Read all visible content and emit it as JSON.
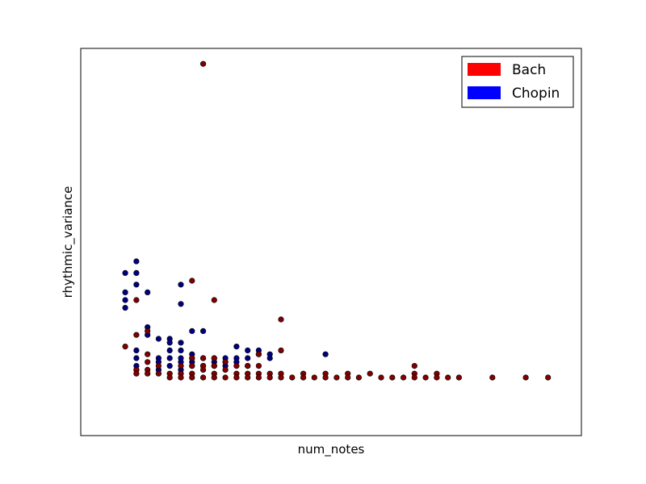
{
  "chart_data": {
    "type": "scatter",
    "xlabel": "num_notes",
    "ylabel": "rhythmic_variance",
    "grid": false,
    "legend_position": "top-right",
    "xlim": [
      0,
      45
    ],
    "ylim": [
      0,
      10
    ],
    "series": [
      {
        "name": "Chopin",
        "color": "#000080",
        "legend_color": "#0000ff",
        "points": [
          [
            4,
            3.7
          ],
          [
            4,
            3.3
          ],
          [
            4,
            4.2
          ],
          [
            4,
            3.5
          ],
          [
            5,
            4.5
          ],
          [
            5,
            4.2
          ],
          [
            5,
            3.9
          ],
          [
            5,
            2.2
          ],
          [
            5,
            2.0
          ],
          [
            5,
            1.8
          ],
          [
            5,
            1.7
          ],
          [
            6,
            3.7
          ],
          [
            6,
            2.8
          ],
          [
            6,
            2.6
          ],
          [
            7,
            2.5
          ],
          [
            7,
            2.0
          ],
          [
            7,
            1.9
          ],
          [
            7,
            1.7
          ],
          [
            8,
            2.5
          ],
          [
            8,
            2.4
          ],
          [
            8,
            2.2
          ],
          [
            8,
            2.0
          ],
          [
            8,
            1.8
          ],
          [
            9,
            3.9
          ],
          [
            9,
            3.4
          ],
          [
            9,
            2.4
          ],
          [
            9,
            2.2
          ],
          [
            9,
            2.0
          ],
          [
            9,
            1.9
          ],
          [
            9,
            1.7
          ],
          [
            10,
            2.7
          ],
          [
            10,
            2.1
          ],
          [
            10,
            2.0
          ],
          [
            10,
            1.9
          ],
          [
            10,
            1.8
          ],
          [
            11,
            2.7
          ],
          [
            11,
            2.0
          ],
          [
            11,
            1.8
          ],
          [
            12,
            2.0
          ],
          [
            12,
            1.9
          ],
          [
            12,
            1.8
          ],
          [
            13,
            2.0
          ],
          [
            13,
            1.9
          ],
          [
            13,
            1.8
          ],
          [
            14,
            2.3
          ],
          [
            14,
            2.0
          ],
          [
            14,
            1.9
          ],
          [
            15,
            2.2
          ],
          [
            15,
            2.0
          ],
          [
            15,
            1.8
          ],
          [
            16,
            2.2
          ],
          [
            16,
            2.1
          ],
          [
            17,
            2.1
          ],
          [
            17,
            2.0
          ],
          [
            22,
            2.1
          ]
        ]
      },
      {
        "name": "Bach",
        "color": "#800000",
        "legend_color": "#ff0000",
        "points": [
          [
            4,
            2.3
          ],
          [
            5,
            3.5
          ],
          [
            5,
            2.6
          ],
          [
            5,
            1.7
          ],
          [
            5,
            1.6
          ],
          [
            6,
            2.7
          ],
          [
            6,
            2.1
          ],
          [
            6,
            1.9
          ],
          [
            6,
            1.7
          ],
          [
            6,
            1.6
          ],
          [
            7,
            1.8
          ],
          [
            7,
            1.6
          ],
          [
            8,
            1.6
          ],
          [
            8,
            1.5
          ],
          [
            9,
            1.8
          ],
          [
            9,
            1.6
          ],
          [
            9,
            1.5
          ],
          [
            10,
            4.0
          ],
          [
            10,
            2.0
          ],
          [
            10,
            1.8
          ],
          [
            10,
            1.6
          ],
          [
            10,
            1.5
          ],
          [
            11,
            9.6
          ],
          [
            11,
            2.0
          ],
          [
            11,
            1.8
          ],
          [
            11,
            1.7
          ],
          [
            11,
            1.5
          ],
          [
            12,
            3.5
          ],
          [
            12,
            2.0
          ],
          [
            12,
            1.8
          ],
          [
            12,
            1.6
          ],
          [
            12,
            1.5
          ],
          [
            13,
            1.9
          ],
          [
            13,
            1.7
          ],
          [
            13,
            1.5
          ],
          [
            14,
            1.8
          ],
          [
            14,
            1.6
          ],
          [
            14,
            1.5
          ],
          [
            15,
            1.8
          ],
          [
            15,
            1.6
          ],
          [
            15,
            1.5
          ],
          [
            16,
            2.1
          ],
          [
            16,
            1.8
          ],
          [
            16,
            1.6
          ],
          [
            16,
            1.5
          ],
          [
            17,
            1.6
          ],
          [
            17,
            1.5
          ],
          [
            18,
            3.0
          ],
          [
            18,
            2.2
          ],
          [
            18,
            1.6
          ],
          [
            18,
            1.5
          ],
          [
            19,
            1.5
          ],
          [
            20,
            1.6
          ],
          [
            20,
            1.5
          ],
          [
            21,
            1.5
          ],
          [
            22,
            1.6
          ],
          [
            22,
            1.5
          ],
          [
            23,
            1.5
          ],
          [
            24,
            1.6
          ],
          [
            24,
            1.5
          ],
          [
            25,
            1.5
          ],
          [
            26,
            1.6
          ],
          [
            27,
            1.5
          ],
          [
            28,
            1.5
          ],
          [
            29,
            1.5
          ],
          [
            30,
            1.8
          ],
          [
            30,
            1.6
          ],
          [
            30,
            1.5
          ],
          [
            31,
            1.5
          ],
          [
            32,
            1.6
          ],
          [
            32,
            1.5
          ],
          [
            33,
            1.5
          ],
          [
            34,
            1.5
          ],
          [
            37,
            1.5
          ],
          [
            40,
            1.5
          ],
          [
            42,
            1.5
          ]
        ]
      }
    ]
  }
}
